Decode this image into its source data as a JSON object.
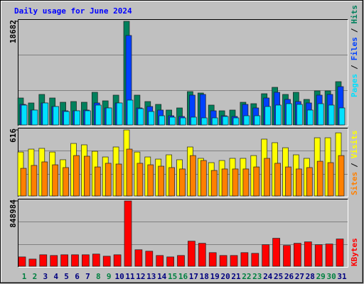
{
  "chart_data": {
    "type": "bar",
    "title": "Daily usage for June 2024",
    "categories": [
      "1",
      "2",
      "3",
      "4",
      "5",
      "6",
      "7",
      "8",
      "9",
      "10",
      "11",
      "12",
      "13",
      "14",
      "15",
      "16",
      "17",
      "18",
      "19",
      "20",
      "21",
      "22",
      "23",
      "24",
      "25",
      "26",
      "27",
      "28",
      "29",
      "30",
      "31"
    ],
    "category_colors": [
      "#008040",
      "#008040",
      "#00007f",
      "#00007f",
      "#00007f",
      "#00007f",
      "#00007f",
      "#008040",
      "#008040",
      "#00007f",
      "#00007f",
      "#00007f",
      "#00007f",
      "#00007f",
      "#008040",
      "#008040",
      "#00007f",
      "#00007f",
      "#00007f",
      "#00007f",
      "#00007f",
      "#008040",
      "#008040",
      "#00007f",
      "#00007f",
      "#00007f",
      "#00007f",
      "#00007f",
      "#008040",
      "#008040",
      "#00007f"
    ],
    "legend_separator": "/",
    "panels": [
      {
        "ylim": [
          0,
          18682
        ],
        "yticks": [
          18682
        ],
        "series": [
          {
            "name": "Hits",
            "color": "#00805c",
            "values": [
              4864,
              3968,
              5504,
              4864,
              4096,
              4224,
              4096,
              5888,
              4352,
              5376,
              18682,
              5376,
              4224,
              3712,
              2688,
              3072,
              6016,
              5760,
              3584,
              2560,
              2688,
              4096,
              3840,
              5632,
              6784,
              5504,
              5888,
              4608,
              6144,
              6144,
              7808
            ]
          },
          {
            "name": "Files",
            "color": "#0040ff",
            "values": [
              3712,
              2688,
              3968,
              3328,
              2560,
              2560,
              2688,
              3968,
              3072,
              3968,
              16128,
              3072,
              3328,
              2688,
              1664,
              1536,
              5376,
              5504,
              2560,
              1664,
              1536,
              3712,
              3072,
              4864,
              5888,
              4608,
              4224,
              3968,
              5376,
              5504,
              6912
            ]
          },
          {
            "name": "Pages",
            "color": "#00e0ff",
            "values": [
              3584,
              2688,
              3968,
              3328,
              2432,
              2560,
              2560,
              3584,
              3072,
              3968,
              4480,
              2944,
              2432,
              1664,
              1408,
              1280,
              1408,
              1280,
              1280,
              1536,
              1280,
              1664,
              1664,
              3328,
              3584,
              3840,
              3712,
              2688,
              3840,
              3584,
              3072
            ]
          }
        ]
      },
      {
        "ylim": [
          0,
          616
        ],
        "yticks": [
          616
        ],
        "series": [
          {
            "name": "Visits",
            "color": "#ffff00",
            "values": [
              410,
              437,
              444,
              410,
              338,
              490,
              477,
              417,
              364,
              457,
              616,
              410,
              364,
              344,
              384,
              338,
              457,
              351,
              311,
              331,
              351,
              351,
              377,
              530,
              497,
              450,
              384,
              351,
              543,
              543,
              589
            ]
          },
          {
            "name": "Sites",
            "color": "#ff8000",
            "values": [
              258,
              285,
              318,
              291,
              265,
              377,
              371,
              271,
              305,
              298,
              437,
              305,
              291,
              278,
              265,
              252,
              377,
              331,
              238,
              252,
              252,
              252,
              271,
              351,
              305,
              271,
              252,
              265,
              324,
              311,
              377
            ]
          }
        ]
      },
      {
        "ylim": [
          0,
          848984
        ],
        "yticks": [
          848984
        ],
        "series": [
          {
            "name": "KBytes",
            "color": "#ff0000",
            "values": [
              121290,
              93300,
              149280,
              139950,
              149280,
              149280,
              149280,
              158610,
              130620,
              149280,
              848984,
              214590,
              195930,
              139950,
              121290,
              139950,
              326550,
              298560,
              177270,
              139950,
              139950,
              177270,
              167940,
              279900,
              363870,
              270570,
              298560,
              317220,
              279900,
              289230,
              354540
            ]
          }
        ]
      }
    ]
  }
}
